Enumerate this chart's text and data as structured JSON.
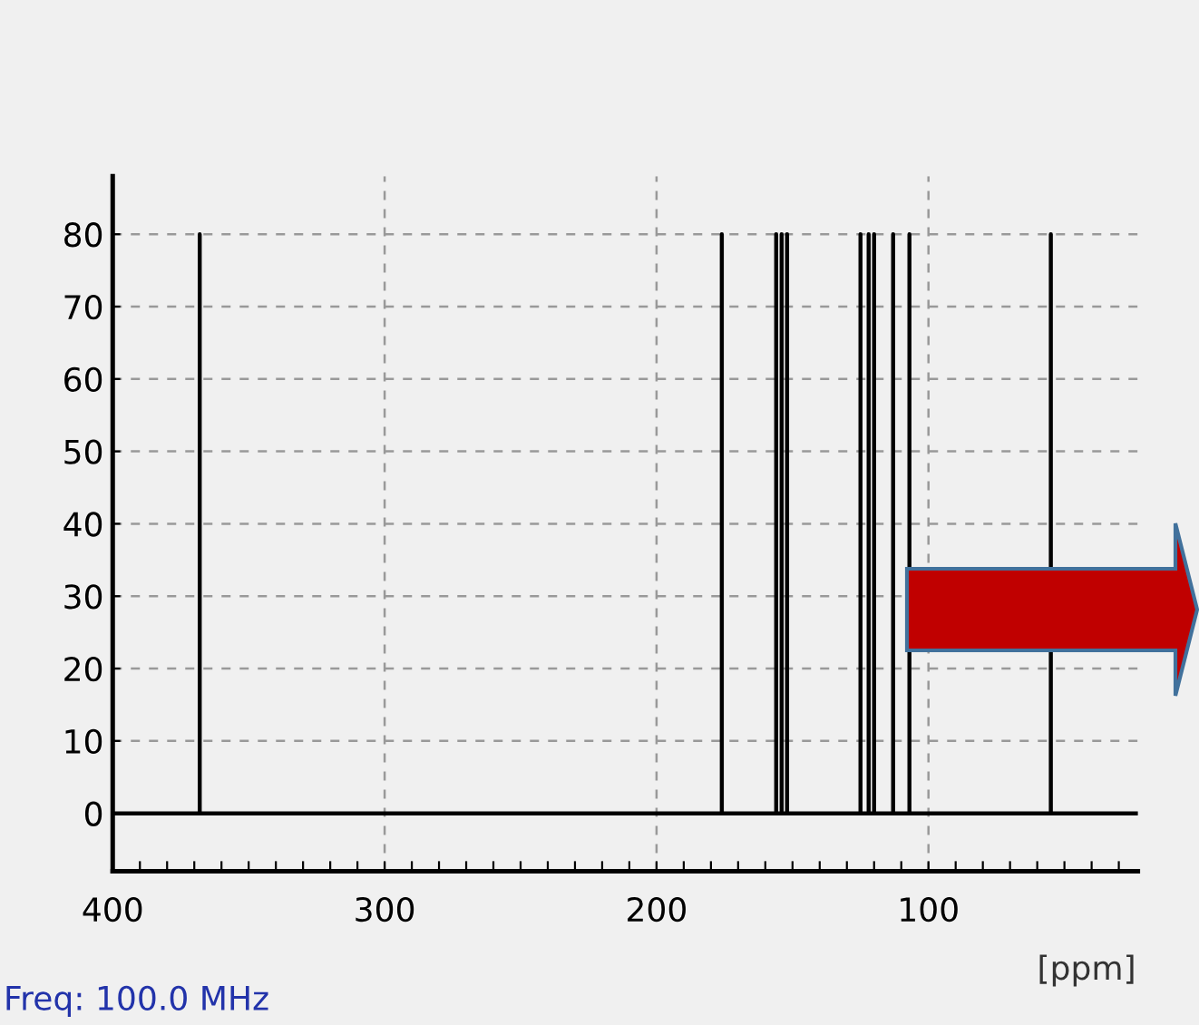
{
  "chart_data": {
    "type": "line",
    "xlabel": "[ppm]",
    "annotations": [
      "Freq: 100.0 MHz"
    ],
    "series": [
      {
        "color": "#000000",
        "x": [
          400,
          368,
          368,
          368,
          176,
          176,
          176,
          156,
          156,
          156,
          154,
          154,
          154,
          152,
          152,
          152,
          125,
          125,
          125,
          122,
          122,
          122,
          120,
          120,
          120,
          113,
          113,
          113,
          107,
          107,
          107,
          55,
          55,
          55,
          23
        ],
        "values": [
          0,
          0,
          80,
          0,
          0,
          80,
          0,
          0,
          80,
          0,
          0,
          80,
          0,
          0,
          80,
          0,
          0,
          80,
          0,
          0,
          80,
          0,
          0,
          80,
          0,
          0,
          80,
          0,
          0,
          80,
          0,
          0,
          80,
          0,
          0
        ]
      }
    ],
    "xlim": [
      400,
      23
    ],
    "ylim": [
      -8,
      88
    ],
    "xticks": [
      400,
      {
        "value": 390,
        "label": null
      },
      {
        "value": 380,
        "label": null
      },
      {
        "value": 370,
        "label": null
      },
      {
        "value": 360,
        "label": null
      },
      {
        "value": 350,
        "label": null
      },
      {
        "value": 340,
        "label": null
      },
      {
        "value": 330,
        "label": null
      },
      {
        "value": 320,
        "label": null
      },
      {
        "value": 310,
        "label": null
      },
      300,
      {
        "value": 290,
        "label": null
      },
      {
        "value": 280,
        "label": null
      },
      {
        "value": 270,
        "label": null
      },
      {
        "value": 260,
        "label": null
      },
      {
        "value": 250,
        "label": null
      },
      {
        "value": 240,
        "label": null
      },
      {
        "value": 230,
        "label": null
      },
      {
        "value": 220,
        "label": null
      },
      {
        "value": 210,
        "label": null
      },
      200,
      {
        "value": 190,
        "label": null
      },
      {
        "value": 180,
        "label": null
      },
      {
        "value": 170,
        "label": null
      },
      {
        "value": 160,
        "label": null
      },
      {
        "value": 150,
        "label": null
      },
      {
        "value": 140,
        "label": null
      },
      {
        "value": 130,
        "label": null
      },
      {
        "value": 120,
        "label": null
      },
      {
        "value": 110,
        "label": null
      },
      100,
      {
        "value": 90,
        "label": null
      },
      {
        "value": 80,
        "label": null
      },
      {
        "value": 70,
        "label": null
      },
      {
        "value": 60,
        "label": null
      },
      {
        "value": 50,
        "label": null
      },
      {
        "value": 40,
        "label": null
      },
      {
        "value": 30,
        "label": null
      }
    ],
    "yticks": [
      0,
      10,
      20,
      30,
      40,
      50,
      60,
      70,
      80
    ],
    "grid": true,
    "line_style": "solid"
  }
}
